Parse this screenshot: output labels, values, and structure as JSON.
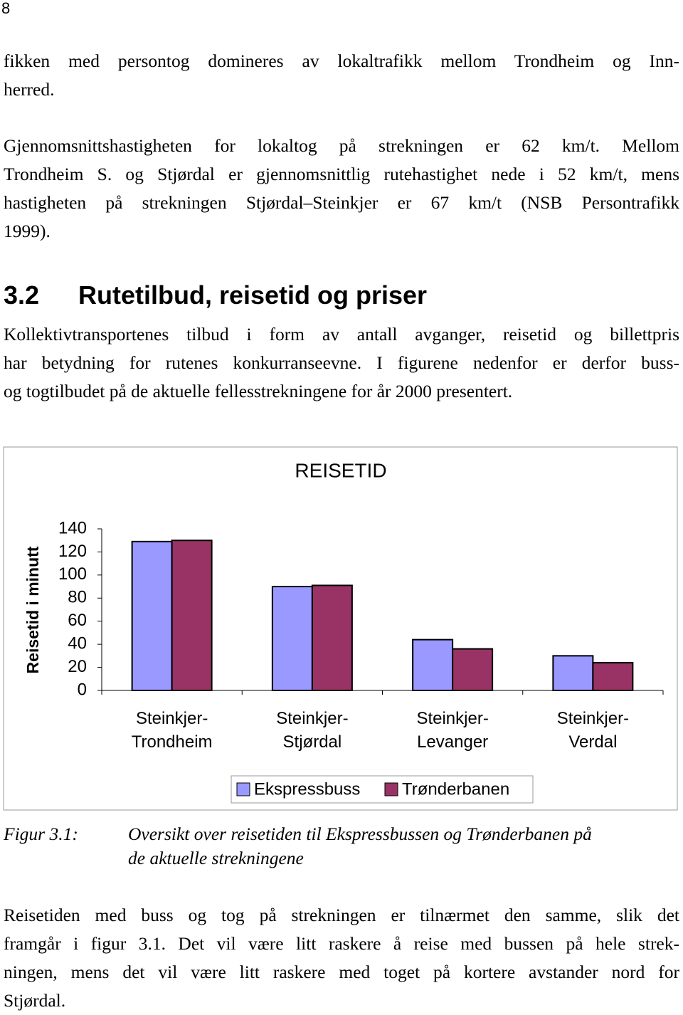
{
  "page_number": "8",
  "intro_paragraphs": [
    [
      "fikken med persontog domineres av lokaltrafikk mellom Trondheim og Inn-",
      "herred."
    ],
    [
      "Gjennomsnittshastigheten for lokaltog på strekningen er 62 km/t. Mellom",
      "Trondheim S. og Stjørdal er gjennomsnittlig rutehastighet nede i 52 km/t, mens",
      "hastigheten på strekningen Stjørdal–Steinkjer er 67 km/t (NSB Persontrafikk",
      "1999)."
    ]
  ],
  "section": {
    "number": "3.2",
    "title": "Rutetilbud, reisetid og priser",
    "paragraph": [
      "Kollektivtransportenes tilbud i form av antall avganger, reisetid og billettpris",
      "har betydning for rutenes konkurranseevne. I figurene nedenfor er derfor buss-",
      "og togtilbudet på de aktuelle fellesstrekningene for år 2000 presentert."
    ]
  },
  "chart_data": {
    "type": "bar",
    "title": "REISETID",
    "y_label": "Reisetid i minutt",
    "categories": [
      "Steinkjer-\nTrondheim",
      "Steinkjer-\nStjørdal",
      "Steinkjer-\nLevanger",
      "Steinkjer-\nVerdal"
    ],
    "series": [
      {
        "name": "Ekspressbuss",
        "color": "#9999ff",
        "values": [
          129,
          90,
          44,
          30
        ]
      },
      {
        "name": "Trønderbanen",
        "color": "#993366",
        "values": [
          130,
          91,
          36,
          24
        ]
      }
    ],
    "ylim": [
      0,
      140
    ],
    "yticks": [
      0,
      20,
      40,
      60,
      80,
      100,
      120,
      140
    ],
    "grid": false,
    "legend": "bottom"
  },
  "caption": {
    "label": "Figur 3.1:",
    "lines": [
      "Oversikt over reisetiden til Ekspressbussen og Trønderbanen på",
      "de aktuelle strekningene"
    ]
  },
  "closing_paragraph": [
    "Reisetiden med buss og tog på strekningen er tilnærmet den samme, slik det",
    "framgår i figur 3.1. Det vil være litt raskere å reise med bussen på hele strek-",
    "ningen, mens det vil være litt raskere med toget på kortere avstander nord for",
    "Stjørdal."
  ]
}
